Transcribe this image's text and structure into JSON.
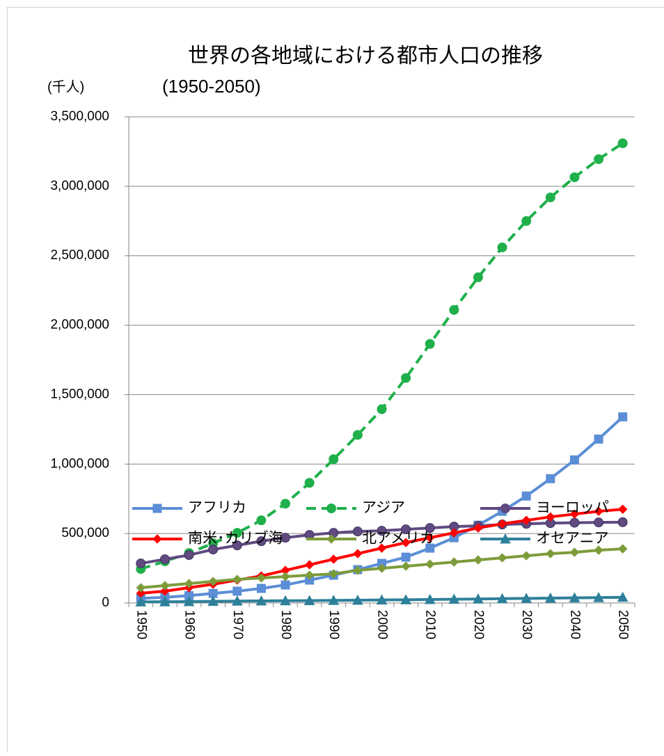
{
  "chart_data": {
    "type": "line",
    "title": "世界の各地域における都市人口の推移",
    "subtitle": "(1950-2050)",
    "y_axis_label": "(千人)",
    "categories": [
      "1950",
      null,
      "1960",
      null,
      "1970",
      null,
      "1980",
      null,
      "1990",
      null,
      "2000",
      null,
      "2010",
      null,
      "2020",
      null,
      "2030",
      null,
      "2040",
      null,
      "2050"
    ],
    "ylim": [
      0,
      3500000
    ],
    "yticks": [
      {
        "value": 0,
        "label": "0"
      },
      {
        "value": 500000,
        "label": "500,000"
      },
      {
        "value": 1000000,
        "label": "1,000,000"
      },
      {
        "value": 1500000,
        "label": "1,500,000"
      },
      {
        "value": 2000000,
        "label": "2,000,000"
      },
      {
        "value": 2500000,
        "label": "2,500,000"
      },
      {
        "value": 3000000,
        "label": "3,000,000"
      },
      {
        "value": 3500000,
        "label": "3,500,000"
      }
    ],
    "grid": true,
    "legend": "bottom",
    "series": [
      {
        "name": "アフリカ",
        "color": "#5b8ed6",
        "marker": "square",
        "dash": false,
        "values": [
          33000,
          41000,
          53000,
          69000,
          85000,
          105000,
          130000,
          165000,
          200000,
          240000,
          285000,
          330000,
          395000,
          470000,
          560000,
          660000,
          770000,
          895000,
          1030000,
          1180000,
          1340000
        ]
      },
      {
        "name": "アジア",
        "color": "#1fb04b",
        "marker": "circle",
        "dash": true,
        "values": [
          245000,
          300000,
          360000,
          430000,
          505000,
          595000,
          715000,
          865000,
          1035000,
          1210000,
          1395000,
          1620000,
          1865000,
          2110000,
          2345000,
          2560000,
          2750000,
          2920000,
          3065000,
          3195000,
          3310000
        ]
      },
      {
        "name": "ヨーロッパ",
        "color": "#5f4b80",
        "marker": "circle",
        "dash": false,
        "values": [
          285000,
          315000,
          345000,
          385000,
          415000,
          445000,
          470000,
          490000,
          505000,
          515000,
          520000,
          530000,
          540000,
          550000,
          555000,
          565000,
          570000,
          575000,
          578000,
          580000,
          582000
        ]
      },
      {
        "name": "南米･カリブ海",
        "color": "#ff0000",
        "marker": "diamond",
        "dash": false,
        "values": [
          70000,
          85000,
          110000,
          135000,
          165000,
          195000,
          235000,
          275000,
          315000,
          355000,
          395000,
          435000,
          470000,
          505000,
          540000,
          570000,
          595000,
          620000,
          640000,
          660000,
          675000
        ]
      },
      {
        "name": "北アメリカ",
        "color": "#7c9c3a",
        "marker": "diamond",
        "dash": false,
        "values": [
          110000,
          125000,
          140000,
          155000,
          170000,
          180000,
          190000,
          200000,
          210000,
          235000,
          250000,
          265000,
          280000,
          295000,
          310000,
          325000,
          340000,
          355000,
          365000,
          380000,
          390000
        ]
      },
      {
        "name": "オセアニア",
        "color": "#2e809a",
        "marker": "triangle",
        "dash": false,
        "values": [
          8000,
          9000,
          10000,
          12000,
          14000,
          15000,
          16000,
          17000,
          19000,
          20000,
          22000,
          23000,
          25000,
          27000,
          29000,
          31000,
          33000,
          35000,
          37000,
          39000,
          41000
        ]
      }
    ]
  }
}
